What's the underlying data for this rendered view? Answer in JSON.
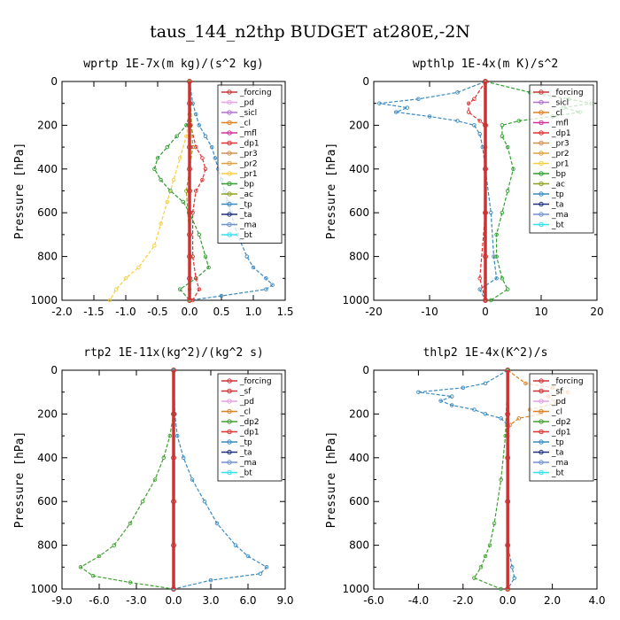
{
  "figure_title": "taus_144_n2thp  BUDGET at280E,-2N",
  "colors": {
    "_forcing": "#cc3333",
    "_sicl": "#b070d0",
    "_pd": "#e6a0e6",
    "_cl": "#e08020",
    "_mfl": "#d0309a",
    "_dp1": "#e03030",
    "_pr3": "#d09050",
    "_pr2": "#e0a040",
    "_pr1": "#f5d040",
    "_bp": "#30a030",
    "_ac": "#90a020",
    "_tp": "#3a8ac0",
    "_ta": "#203080",
    "_ma": "#7090d0",
    "_bt": "#30e0f0",
    "_sf": "#d03030",
    "_dp2": "#40a030"
  },
  "chart_data": [
    {
      "type": "line",
      "title": "wprtp  1E-7x(m kg)/(s^2 kg)",
      "xlabel": "",
      "ylabel": "Pressure [hPa]",
      "xlim": [
        -2,
        1.5
      ],
      "ylim": [
        1000,
        0
      ],
      "xticks": [
        "-2.0",
        "-1.5",
        "-1.0",
        "-0.5",
        "0.0",
        "0.5",
        "1.0",
        "1.5"
      ],
      "xtick_values": [
        -2.0,
        -1.5,
        -1.0,
        -0.5,
        0.0,
        0.5,
        1.0,
        1.5
      ],
      "yticks": [
        "0",
        "200",
        "400",
        "600",
        "800",
        "1000"
      ],
      "legend_position": "top-right",
      "legend": [
        "_forcing",
        "_pd",
        "_sicl",
        "_cl",
        "_mfl",
        "_dp1",
        "_pr3",
        "_pr2",
        "_pr1",
        "_bp",
        "_ac",
        "_tp",
        "_ta",
        "_ma",
        "_bt"
      ],
      "series": [
        {
          "name": "_pr1",
          "y": [
            0,
            150,
            250,
            350,
            450,
            550,
            650,
            750,
            850,
            900,
            950,
            1000
          ],
          "x": [
            0.0,
            0.0,
            -0.05,
            -0.15,
            -0.25,
            -0.35,
            -0.45,
            -0.55,
            -0.8,
            -1.0,
            -1.15,
            -1.25
          ]
        },
        {
          "name": "_bp",
          "y": [
            0,
            150,
            200,
            250,
            300,
            350,
            400,
            450,
            500,
            550,
            600,
            700,
            800,
            850,
            900,
            950,
            1000
          ],
          "x": [
            0.0,
            0.0,
            -0.05,
            -0.2,
            -0.35,
            -0.5,
            -0.55,
            -0.45,
            -0.3,
            -0.1,
            0.0,
            0.15,
            0.25,
            0.3,
            0.1,
            -0.15,
            0.0
          ]
        },
        {
          "name": "_tp",
          "y": [
            0,
            100,
            150,
            200,
            250,
            300,
            350,
            400,
            450,
            500,
            550,
            600,
            700,
            800,
            850,
            900,
            930,
            950,
            980,
            1000
          ],
          "x": [
            0.0,
            0.05,
            0.1,
            0.15,
            0.25,
            0.35,
            0.4,
            0.45,
            0.5,
            0.55,
            0.6,
            0.65,
            0.75,
            0.9,
            1.0,
            1.2,
            1.3,
            1.2,
            0.5,
            0.0
          ]
        },
        {
          "name": "_dp1",
          "y": [
            0,
            200,
            300,
            350,
            400,
            450,
            500,
            600,
            800,
            900,
            950,
            1000
          ],
          "x": [
            0.0,
            0.02,
            0.1,
            0.2,
            0.25,
            0.2,
            0.1,
            0.05,
            0.05,
            0.1,
            0.15,
            0.05
          ]
        },
        {
          "name": "_ac",
          "y": [
            0,
            300,
            500,
            800,
            950,
            1000
          ],
          "x": [
            0.0,
            0.05,
            -0.05,
            0.02,
            0.0,
            0.0
          ]
        },
        {
          "name": "_forcing",
          "y": [
            0,
            100,
            200,
            300,
            400,
            500,
            600,
            700,
            800,
            900,
            1000
          ],
          "x": [
            0,
            0,
            0,
            0,
            0,
            0,
            0,
            0,
            0,
            0,
            0
          ]
        }
      ]
    },
    {
      "type": "line",
      "title": "wpthlp  1E-4x(m K)/s^2",
      "xlabel": "",
      "ylabel": "Pressure [hPa]",
      "xlim": [
        -20,
        20
      ],
      "ylim": [
        1000,
        0
      ],
      "xticks": [
        "-20",
        "-10",
        "0",
        "10",
        "20"
      ],
      "xtick_values": [
        -20,
        -10,
        0,
        10,
        20
      ],
      "yticks": [
        "0",
        "200",
        "400",
        "600",
        "800",
        "1000"
      ],
      "legend_position": "top-right",
      "legend": [
        "_forcing",
        "_sicl",
        "_cl",
        "_mfl",
        "_dp1",
        "_pr3",
        "_pr2",
        "_pr1",
        "_bp",
        "_ac",
        "_tp",
        "_ta",
        "_ma",
        "_bt"
      ],
      "series": [
        {
          "name": "_tp",
          "y": [
            0,
            50,
            80,
            100,
            120,
            140,
            160,
            180,
            200,
            240,
            300,
            400,
            600,
            800,
            900,
            950,
            1000
          ],
          "x": [
            0,
            -5,
            -12,
            -19,
            -14,
            -16,
            -10,
            -5,
            -2,
            -1,
            -0.5,
            0,
            1,
            1.5,
            2,
            -1,
            0
          ]
        },
        {
          "name": "_bp",
          "y": [
            0,
            50,
            80,
            100,
            120,
            140,
            160,
            180,
            200,
            250,
            300,
            400,
            500,
            600,
            700,
            800,
            900,
            950,
            1000
          ],
          "x": [
            0,
            8,
            15,
            19,
            14,
            17,
            12,
            6,
            3,
            3,
            4,
            5,
            4,
            3,
            2,
            2,
            3,
            4,
            1
          ]
        },
        {
          "name": "_dp1",
          "y": [
            0,
            80,
            100,
            140,
            180,
            200,
            300,
            600,
            900,
            1000
          ],
          "x": [
            0,
            -2,
            -3,
            -3,
            -1,
            0,
            0,
            0,
            -1,
            0
          ]
        },
        {
          "name": "_forcing",
          "y": [
            0,
            200,
            400,
            600,
            800,
            1000
          ],
          "x": [
            0,
            0,
            0,
            0,
            0,
            0
          ]
        }
      ]
    },
    {
      "type": "line",
      "title": "rtp2  1E-11x(kg^2)/(kg^2 s)",
      "xlabel": "",
      "ylabel": "Pressure [hPa]",
      "xlim": [
        -9,
        9
      ],
      "ylim": [
        1000,
        0
      ],
      "xticks": [
        "-9.0",
        "-6.0",
        "-3.0",
        "0.0",
        "3.0",
        "6.0",
        "9.0"
      ],
      "xtick_values": [
        -9,
        -6,
        -3,
        0,
        3,
        6,
        9
      ],
      "yticks": [
        "0",
        "200",
        "400",
        "600",
        "800",
        "1000"
      ],
      "legend_position": "top-right",
      "legend": [
        "_forcing",
        "_sf",
        "_pd",
        "_cl",
        "_dp2",
        "_dp1",
        "_tp",
        "_ta",
        "_ma",
        "_bt"
      ],
      "series": [
        {
          "name": "_dp2",
          "y": [
            0,
            200,
            300,
            400,
            500,
            600,
            700,
            800,
            850,
            900,
            940,
            970,
            1000
          ],
          "x": [
            0,
            0,
            -0.3,
            -0.8,
            -1.5,
            -2.5,
            -3.5,
            -4.8,
            -6.0,
            -7.5,
            -6.5,
            -3.5,
            0
          ]
        },
        {
          "name": "_tp",
          "y": [
            0,
            200,
            300,
            400,
            500,
            600,
            700,
            800,
            850,
            900,
            930,
            960,
            1000
          ],
          "x": [
            0,
            0.1,
            0.3,
            0.8,
            1.5,
            2.5,
            3.5,
            5.0,
            6.0,
            7.5,
            7.0,
            3.0,
            0
          ]
        },
        {
          "name": "_forcing",
          "y": [
            0,
            200,
            400,
            600,
            800,
            1000
          ],
          "x": [
            0,
            0,
            0,
            0,
            0,
            0
          ]
        }
      ]
    },
    {
      "type": "line",
      "title": "thlp2  1E-4x(K^2)/s",
      "xlabel": "",
      "ylabel": "Pressure [hPa]",
      "xlim": [
        -6,
        4
      ],
      "ylim": [
        1000,
        0
      ],
      "xticks": [
        "-6.0",
        "-4.0",
        "-2.0",
        "0.0",
        "2.0",
        "4.0"
      ],
      "xtick_values": [
        -6,
        -4,
        -2,
        0,
        2,
        4
      ],
      "yticks": [
        "0",
        "200",
        "400",
        "600",
        "800",
        "1000"
      ],
      "legend_position": "top-right",
      "legend": [
        "_forcing",
        "_sf",
        "_pd",
        "_cl",
        "_dp2",
        "_dp1",
        "_tp",
        "_ta",
        "_ma",
        "_bt"
      ],
      "series": [
        {
          "name": "_tp",
          "y": [
            0,
            60,
            80,
            100,
            120,
            140,
            160,
            180,
            200,
            220,
            250,
            400,
            600,
            800,
            900,
            950,
            1000
          ],
          "x": [
            0,
            -1,
            -2,
            -4,
            -2.5,
            -3,
            -2.5,
            -1.5,
            -1.0,
            -0.3,
            0,
            0,
            0,
            0,
            0.2,
            0.3,
            0
          ]
        },
        {
          "name": "_cl",
          "y": [
            0,
            60,
            80,
            100,
            120,
            150,
            180,
            200,
            220,
            250,
            300,
            1000
          ],
          "x": [
            0,
            0.8,
            2.0,
            2.7,
            1.8,
            2.2,
            1.0,
            1.5,
            0.5,
            0.1,
            0,
            0
          ]
        },
        {
          "name": "_dp2",
          "y": [
            0,
            300,
            500,
            700,
            800,
            850,
            900,
            950,
            1000
          ],
          "x": [
            0,
            -0.1,
            -0.3,
            -0.6,
            -0.8,
            -1.0,
            -1.2,
            -1.5,
            -0.3
          ]
        },
        {
          "name": "_forcing",
          "y": [
            0,
            200,
            400,
            600,
            800,
            1000
          ],
          "x": [
            0,
            0,
            0,
            0,
            0,
            0
          ]
        }
      ]
    }
  ]
}
